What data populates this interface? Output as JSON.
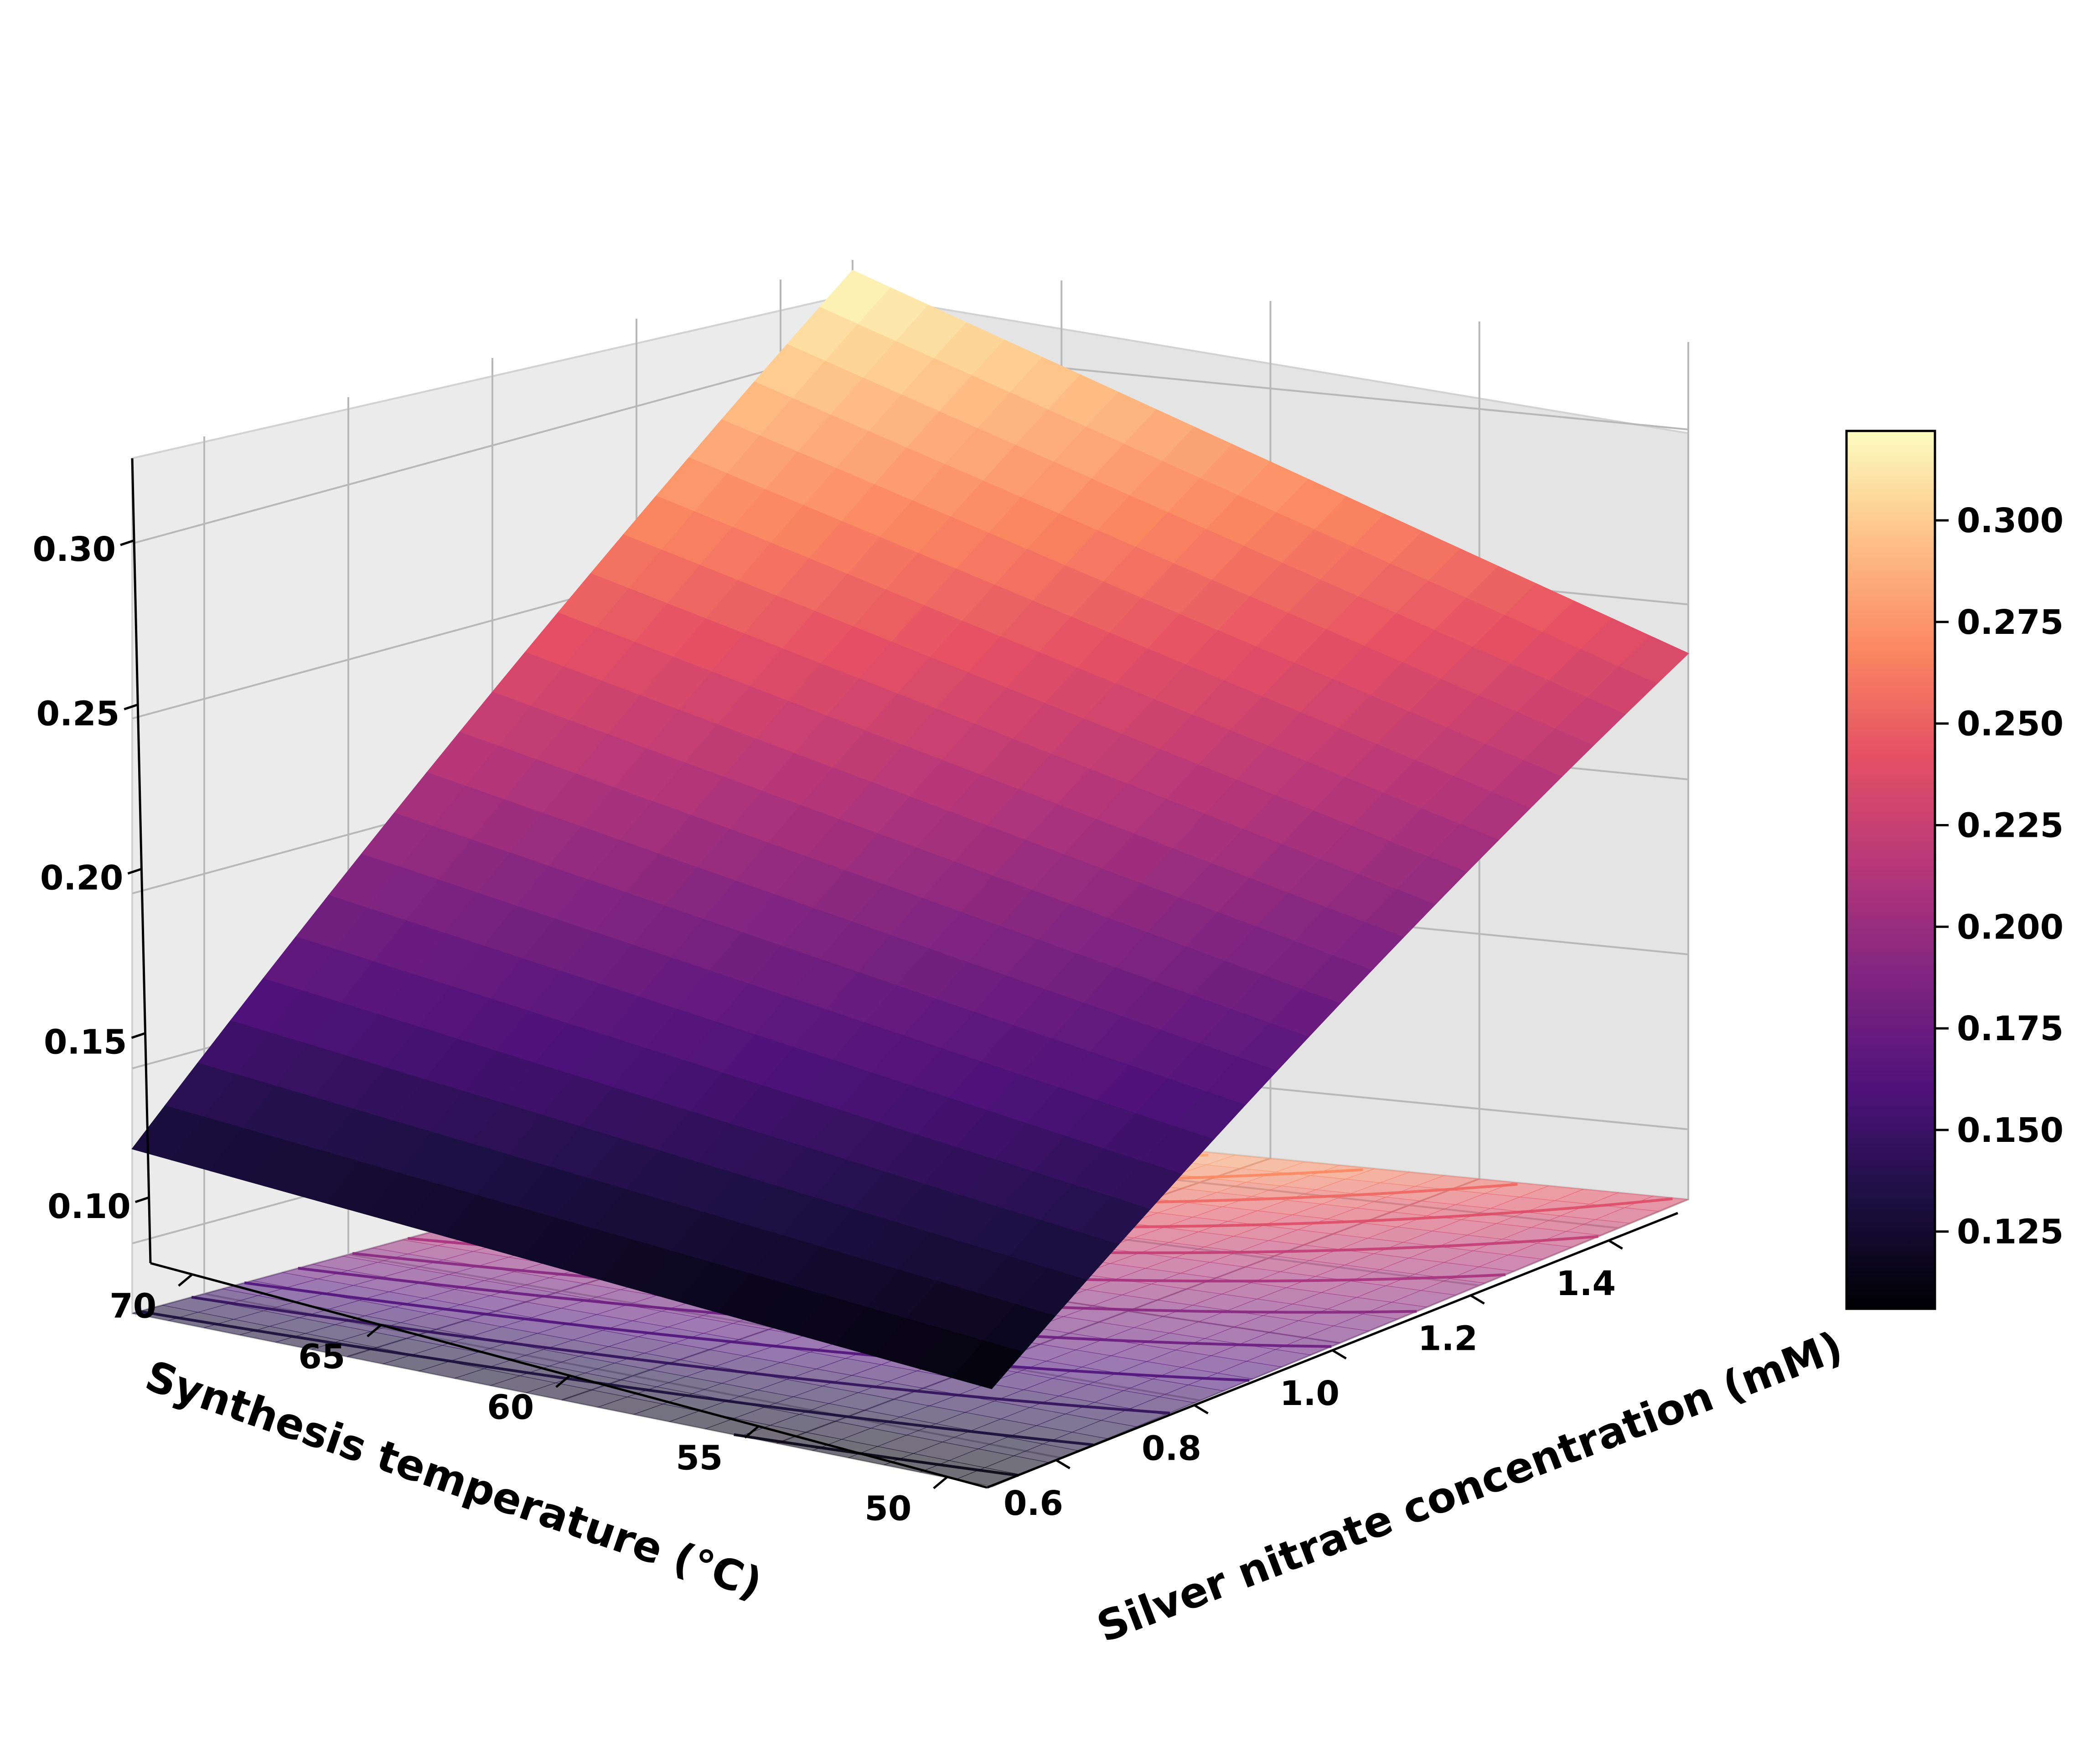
{
  "chart_data": {
    "type": "surface",
    "x_axis": {
      "label": "Silver nitrate concentration (mM)",
      "range": [
        0.5,
        1.5
      ],
      "ticks": [
        0.6,
        0.8,
        1.0,
        1.2,
        1.4
      ],
      "tick_labels": [
        "0.6",
        "0.8",
        "1.0",
        "1.2",
        "1.4"
      ]
    },
    "y_axis": {
      "label": "Synthesis temperature (°C)",
      "range": [
        50,
        70
      ],
      "ticks": [
        50,
        55,
        60,
        65,
        70
      ],
      "tick_labels": [
        "50",
        "55",
        "60",
        "65",
        "70"
      ]
    },
    "z_axis": {
      "label": "",
      "range": [
        0.08,
        0.325
      ],
      "ticks": [
        0.1,
        0.15,
        0.2,
        0.25,
        0.3
      ],
      "tick_labels": [
        "0.10",
        "0.15",
        "0.20",
        "0.25",
        "0.30"
      ]
    },
    "corner_values": [
      {
        "x": 0.5,
        "y": 50,
        "z": 0.108
      },
      {
        "x": 0.5,
        "y": 70,
        "z": 0.127
      },
      {
        "x": 1.5,
        "y": 50,
        "z": 0.236
      },
      {
        "x": 1.5,
        "y": 70,
        "z": 0.322
      }
    ],
    "grid": true,
    "colormap": "magma",
    "contour_projection": "floor",
    "colorbar": {
      "range": [
        0.106,
        0.322
      ],
      "ticks": [
        0.125,
        0.15,
        0.175,
        0.2,
        0.225,
        0.25,
        0.275,
        0.3
      ],
      "tick_labels": [
        "0.125",
        "0.150",
        "0.175",
        "0.200",
        "0.225",
        "0.250",
        "0.275",
        "0.300"
      ],
      "position": "right"
    }
  }
}
